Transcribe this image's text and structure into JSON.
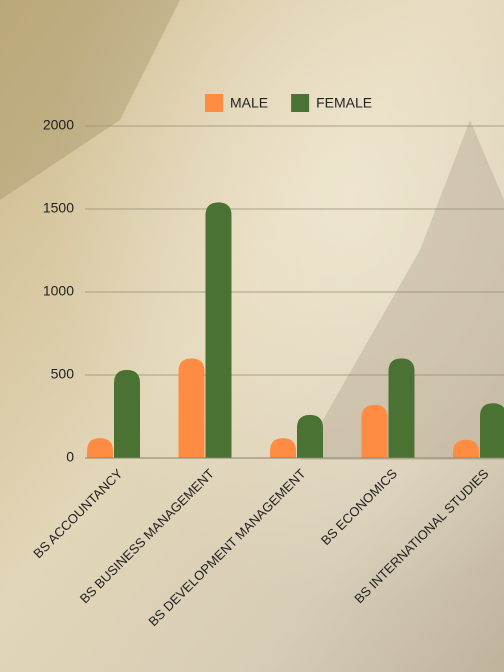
{
  "chart_data": {
    "type": "bar",
    "categories": [
      "BS ACCOUNTANCY",
      "BS BUSINESS MANAGEMENT",
      "BS DEVELOPMENT MANAGEMENT",
      "BS ECONOMICS",
      "BS INTERNATIONAL STUDIES"
    ],
    "series": [
      {
        "name": "MALE",
        "color": "#ff8c42",
        "values": [
          120,
          600,
          120,
          320,
          110
        ]
      },
      {
        "name": "FEMALE",
        "color": "#4a7232",
        "values": [
          530,
          1540,
          260,
          600,
          330
        ]
      }
    ],
    "ylim": [
      0,
      2000
    ],
    "yticks": [
      0,
      500,
      1000,
      1500,
      2000
    ],
    "grid": true,
    "legend": "top"
  }
}
